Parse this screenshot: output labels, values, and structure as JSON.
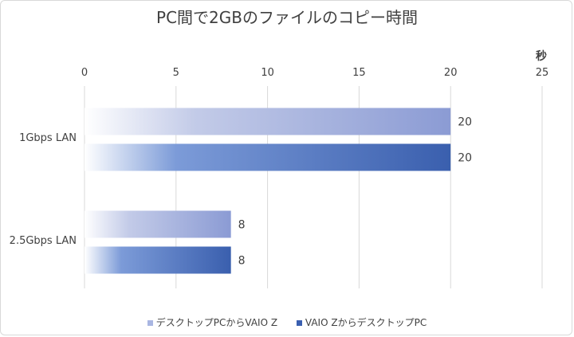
{
  "chart_data": {
    "type": "bar",
    "orientation": "horizontal",
    "title": "PC間で2GBのファイルのコピー時間",
    "xlabel": "秒",
    "ylabel": "",
    "xlim": [
      0,
      25
    ],
    "x_ticks": [
      0,
      5,
      10,
      15,
      20,
      25
    ],
    "grid": "vertical",
    "legend_position": "bottom",
    "categories": [
      "1Gbps LAN",
      "2.5Gbps LAN"
    ],
    "series": [
      {
        "name": "デスクトップPCからVAIO Z",
        "values": [
          20,
          8
        ],
        "color": "#8fa0d6"
      },
      {
        "name": "VAIO ZからデスクトップPC",
        "values": [
          20,
          8
        ],
        "color": "#3a5fb0"
      }
    ],
    "data_labels": true
  }
}
